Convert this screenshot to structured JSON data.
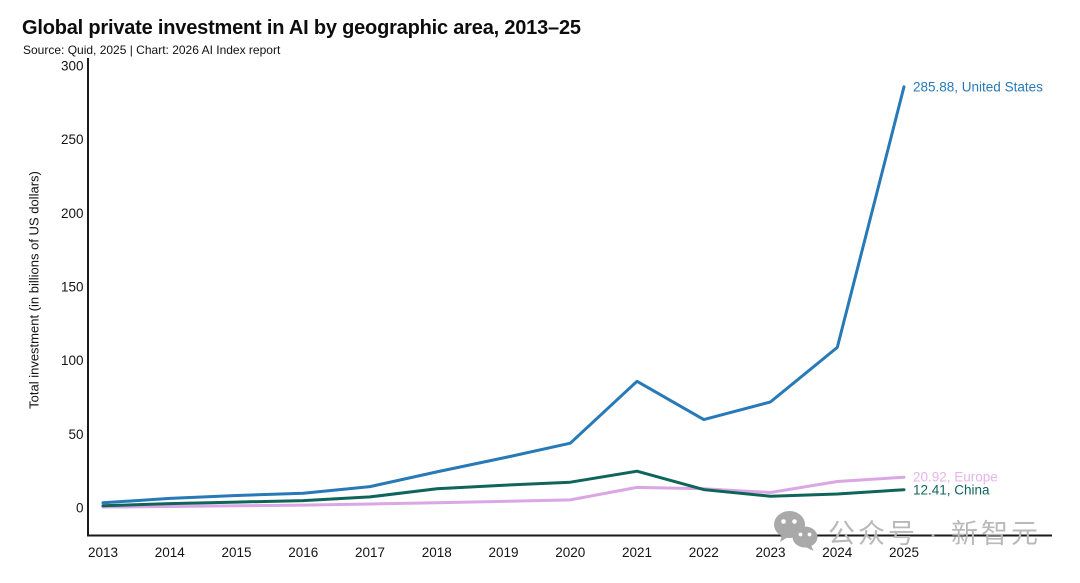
{
  "header": {
    "title": "Global private investment in AI by geographic area, 2013–25",
    "subtitle": "Source: Quid, 2025 | Chart: 2026 AI Index report"
  },
  "chart_data": {
    "type": "line",
    "title": "Global private investment in AI by geographic area, 2013–25",
    "xlabel": "",
    "ylabel": "Total investment (in billions of US dollars)",
    "x": [
      "2013",
      "2014",
      "2015",
      "2016",
      "2017",
      "2018",
      "2019",
      "2020",
      "2021",
      "2022",
      "2023",
      "2024",
      "2025"
    ],
    "yticks": [
      0,
      50,
      100,
      150,
      200,
      250,
      300
    ],
    "ylim": [
      0,
      300
    ],
    "grid": false,
    "legend_position": "end-of-line-labels",
    "series": [
      {
        "name": "United States",
        "color": "#2779b7",
        "label_color": "#2779b7",
        "values": [
          3.5,
          6.5,
          8.5,
          10,
          14.5,
          24.5,
          34,
          44,
          86,
          60,
          72,
          109,
          285.88
        ],
        "end_value": "285.88",
        "end_label": "285.88, United States"
      },
      {
        "name": "Europe",
        "color": "#daa7e4",
        "label_color": "#e5b4ec",
        "values": [
          0.7,
          1,
          1.5,
          2,
          2.7,
          3.5,
          4.5,
          5.5,
          14,
          13,
          10.5,
          18,
          20.92
        ],
        "end_value": "20.92",
        "end_label": "20.92, Europe"
      },
      {
        "name": "China",
        "color": "#10655a",
        "label_color": "#10655a",
        "values": [
          1.5,
          3,
          4,
          5,
          7.5,
          13,
          15.5,
          17.5,
          25,
          12.5,
          8,
          9.5,
          12.41
        ],
        "end_value": "12.41",
        "end_label": "12.41, China"
      }
    ],
    "axis_color": "#1a1a1a"
  },
  "watermark": {
    "icon": "wechat-icon",
    "text": "公众号 · 新智元"
  }
}
